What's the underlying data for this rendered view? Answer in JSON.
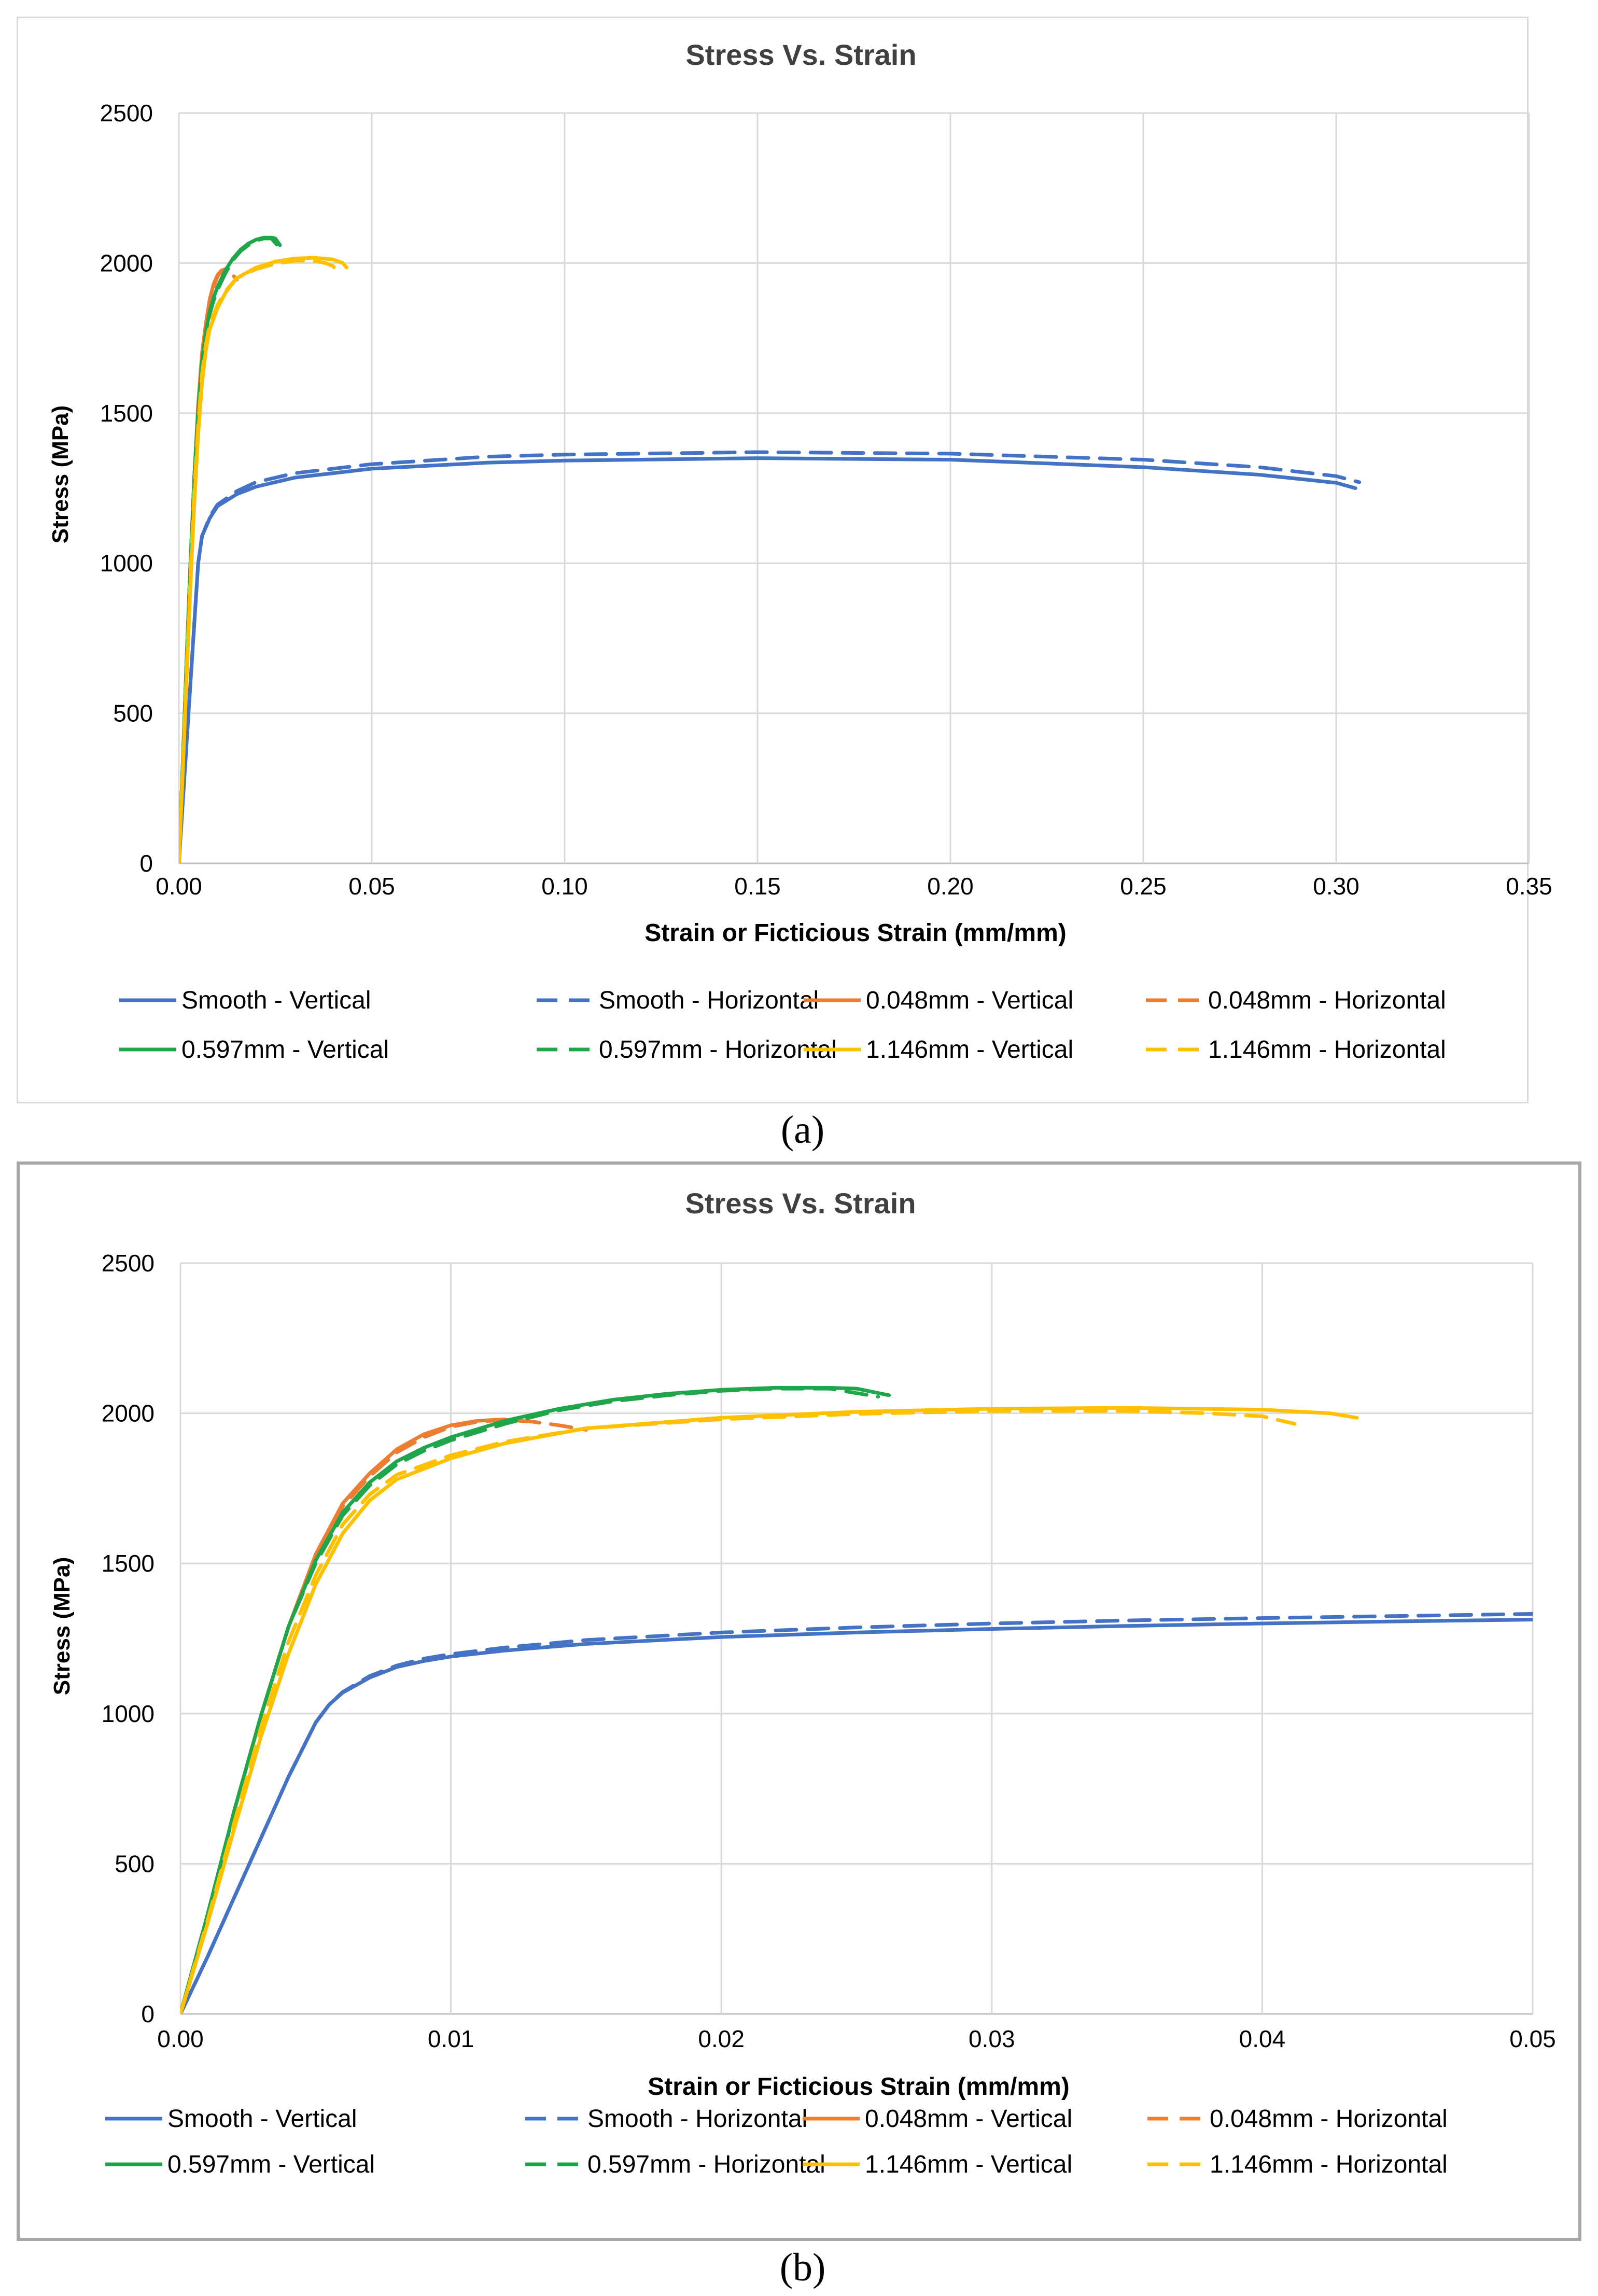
{
  "chart_data": [
    {
      "id": "a",
      "type": "line",
      "title": "Stress Vs. Strain",
      "xlabel": "Strain or Ficticious Strain (mm/mm)",
      "ylabel": "Stress (MPa)",
      "xlim": [
        0,
        0.35
      ],
      "ylim": [
        0,
        2500
      ],
      "xticks": [
        0,
        0.05,
        0.1,
        0.15,
        0.2,
        0.25,
        0.3,
        0.35
      ],
      "xtick_labels": [
        "0.00",
        "0.05",
        "0.10",
        "0.15",
        "0.20",
        "0.25",
        "0.30",
        "0.35"
      ],
      "yticks": [
        0,
        500,
        1000,
        1500,
        2000,
        2500
      ],
      "ytick_labels": [
        "0",
        "500",
        "1000",
        "1500",
        "2000",
        "2500"
      ],
      "grid": "vertical and horizontal",
      "legend_position": "bottom",
      "caption": "(a)",
      "series": [
        {
          "name": "Smooth - Vertical",
          "color": "#4472c4",
          "dash": false,
          "x": [
            0,
            0.003,
            0.005,
            0.006,
            0.008,
            0.01,
            0.015,
            0.02,
            0.03,
            0.05,
            0.08,
            0.1,
            0.15,
            0.2,
            0.25,
            0.28,
            0.3,
            0.305
          ],
          "y": [
            0,
            600,
            1000,
            1090,
            1150,
            1190,
            1230,
            1255,
            1285,
            1315,
            1335,
            1342,
            1350,
            1345,
            1320,
            1295,
            1268,
            1250
          ]
        },
        {
          "name": "Smooth - Horizontal",
          "color": "#4472c4",
          "dash": true,
          "x": [
            0,
            0.003,
            0.005,
            0.006,
            0.008,
            0.01,
            0.015,
            0.02,
            0.03,
            0.05,
            0.08,
            0.1,
            0.15,
            0.2,
            0.25,
            0.28,
            0.3,
            0.306
          ],
          "y": [
            0,
            600,
            1000,
            1090,
            1155,
            1195,
            1240,
            1270,
            1300,
            1330,
            1355,
            1362,
            1370,
            1365,
            1345,
            1320,
            1290,
            1270
          ]
        },
        {
          "name": "0.048mm - Vertical",
          "color": "#ed7d31",
          "dash": false,
          "x": [
            0,
            0.001,
            0.002,
            0.003,
            0.004,
            0.005,
            0.006,
            0.007,
            0.008,
            0.009,
            0.01,
            0.011,
            0.012
          ],
          "y": [
            0,
            330,
            680,
            1000,
            1290,
            1530,
            1700,
            1800,
            1880,
            1930,
            1960,
            1975,
            1980
          ]
        },
        {
          "name": "0.048mm - Horizontal",
          "color": "#ed7d31",
          "dash": true,
          "x": [
            0,
            0.001,
            0.002,
            0.003,
            0.004,
            0.005,
            0.006,
            0.007,
            0.008,
            0.009,
            0.01,
            0.011,
            0.012,
            0.013,
            0.014,
            0.015
          ],
          "y": [
            0,
            330,
            680,
            1000,
            1290,
            1520,
            1690,
            1790,
            1870,
            1920,
            1955,
            1972,
            1978,
            1972,
            1960,
            1945
          ]
        },
        {
          "name": "0.597mm - Vertical",
          "color": "#1fa64a",
          "dash": false,
          "x": [
            0,
            0.001,
            0.002,
            0.003,
            0.004,
            0.005,
            0.006,
            0.007,
            0.008,
            0.009,
            0.01,
            0.012,
            0.014,
            0.016,
            0.018,
            0.02,
            0.022,
            0.024,
            0.025,
            0.0262
          ],
          "y": [
            0,
            330,
            680,
            1000,
            1290,
            1510,
            1670,
            1770,
            1840,
            1885,
            1920,
            1975,
            2015,
            2045,
            2065,
            2078,
            2085,
            2085,
            2082,
            2060
          ]
        },
        {
          "name": "0.597mm - Horizontal",
          "color": "#1fa64a",
          "dash": true,
          "x": [
            0,
            0.001,
            0.002,
            0.003,
            0.004,
            0.005,
            0.006,
            0.007,
            0.008,
            0.009,
            0.01,
            0.012,
            0.014,
            0.016,
            0.018,
            0.02,
            0.022,
            0.024,
            0.0258
          ],
          "y": [
            0,
            330,
            680,
            1000,
            1290,
            1500,
            1660,
            1760,
            1830,
            1875,
            1910,
            1965,
            2010,
            2040,
            2060,
            2075,
            2082,
            2082,
            2055
          ]
        },
        {
          "name": "1.146mm - Vertical",
          "color": "#ffc000",
          "dash": false,
          "x": [
            0,
            0.001,
            0.002,
            0.003,
            0.004,
            0.005,
            0.006,
            0.007,
            0.008,
            0.01,
            0.012,
            0.015,
            0.02,
            0.025,
            0.03,
            0.035,
            0.04,
            0.0425,
            0.0435
          ],
          "y": [
            0,
            300,
            620,
            930,
            1200,
            1430,
            1600,
            1710,
            1780,
            1850,
            1900,
            1950,
            1985,
            2005,
            2015,
            2018,
            2012,
            2000,
            1985
          ]
        },
        {
          "name": "1.146mm - Horizontal",
          "color": "#ffc000",
          "dash": true,
          "x": [
            0,
            0.001,
            0.002,
            0.003,
            0.004,
            0.005,
            0.006,
            0.007,
            0.008,
            0.01,
            0.012,
            0.015,
            0.02,
            0.025,
            0.03,
            0.035,
            0.038,
            0.04,
            0.0412
          ],
          "y": [
            0,
            310,
            640,
            960,
            1240,
            1460,
            1630,
            1730,
            1795,
            1860,
            1905,
            1950,
            1980,
            1998,
            2008,
            2008,
            2000,
            1990,
            1965
          ]
        }
      ]
    },
    {
      "id": "b",
      "type": "line",
      "title": "Stress Vs. Strain",
      "xlabel": "Strain or Ficticious Strain (mm/mm)",
      "ylabel": "Stress (MPa)",
      "xlim": [
        0,
        0.05
      ],
      "ylim": [
        0,
        2500
      ],
      "xticks": [
        0,
        0.01,
        0.02,
        0.03,
        0.04,
        0.05
      ],
      "xtick_labels": [
        "0.00",
        "0.01",
        "0.02",
        "0.03",
        "0.04",
        "0.05"
      ],
      "yticks": [
        0,
        500,
        1000,
        1500,
        2000,
        2500
      ],
      "ytick_labels": [
        "0",
        "500",
        "1000",
        "1500",
        "2000",
        "2500"
      ],
      "grid": "vertical and horizontal",
      "legend_position": "bottom",
      "caption": "(b)",
      "series": [
        {
          "name": "Smooth - Vertical",
          "color": "#4472c4",
          "dash": false,
          "x": [
            0,
            0.001,
            0.002,
            0.003,
            0.004,
            0.005,
            0.0055,
            0.006,
            0.007,
            0.008,
            0.009,
            0.01,
            0.012,
            0.015,
            0.02,
            0.025,
            0.03,
            0.035,
            0.04,
            0.045,
            0.05
          ],
          "y": [
            0,
            190,
            390,
            590,
            790,
            970,
            1030,
            1070,
            1120,
            1155,
            1175,
            1190,
            1210,
            1232,
            1255,
            1270,
            1282,
            1292,
            1300,
            1307,
            1313
          ]
        },
        {
          "name": "Smooth - Horizontal",
          "color": "#4472c4",
          "dash": true,
          "x": [
            0,
            0.001,
            0.002,
            0.003,
            0.004,
            0.005,
            0.0055,
            0.006,
            0.007,
            0.008,
            0.009,
            0.01,
            0.012,
            0.015,
            0.02,
            0.025,
            0.03,
            0.035,
            0.04,
            0.045,
            0.05
          ],
          "y": [
            0,
            190,
            390,
            590,
            790,
            970,
            1030,
            1072,
            1125,
            1160,
            1183,
            1198,
            1220,
            1245,
            1270,
            1287,
            1300,
            1310,
            1318,
            1325,
            1332
          ]
        },
        {
          "name": "0.048mm - Vertical",
          "color": "#ed7d31",
          "dash": false,
          "x": [
            0,
            0.001,
            0.002,
            0.003,
            0.004,
            0.005,
            0.006,
            0.007,
            0.008,
            0.009,
            0.01,
            0.011,
            0.012
          ],
          "y": [
            0,
            330,
            680,
            1000,
            1290,
            1530,
            1700,
            1800,
            1880,
            1930,
            1960,
            1975,
            1980
          ]
        },
        {
          "name": "0.048mm - Horizontal",
          "color": "#ed7d31",
          "dash": true,
          "x": [
            0,
            0.001,
            0.002,
            0.003,
            0.004,
            0.005,
            0.006,
            0.007,
            0.008,
            0.009,
            0.01,
            0.011,
            0.012,
            0.013,
            0.014,
            0.015
          ],
          "y": [
            0,
            330,
            680,
            1000,
            1290,
            1520,
            1690,
            1790,
            1870,
            1920,
            1955,
            1972,
            1978,
            1972,
            1960,
            1945
          ]
        },
        {
          "name": "0.597mm - Vertical",
          "color": "#1fa64a",
          "dash": false,
          "x": [
            0,
            0.001,
            0.002,
            0.003,
            0.004,
            0.005,
            0.006,
            0.007,
            0.008,
            0.009,
            0.01,
            0.012,
            0.014,
            0.016,
            0.018,
            0.02,
            0.022,
            0.024,
            0.025,
            0.0262
          ],
          "y": [
            0,
            330,
            680,
            1000,
            1290,
            1510,
            1670,
            1770,
            1840,
            1885,
            1920,
            1975,
            2015,
            2045,
            2065,
            2078,
            2085,
            2085,
            2082,
            2060
          ]
        },
        {
          "name": "0.597mm - Horizontal",
          "color": "#1fa64a",
          "dash": true,
          "x": [
            0,
            0.001,
            0.002,
            0.003,
            0.004,
            0.005,
            0.006,
            0.007,
            0.008,
            0.009,
            0.01,
            0.012,
            0.014,
            0.016,
            0.018,
            0.02,
            0.022,
            0.024,
            0.0258
          ],
          "y": [
            0,
            330,
            680,
            1000,
            1290,
            1500,
            1660,
            1760,
            1830,
            1875,
            1910,
            1965,
            2010,
            2040,
            2060,
            2075,
            2082,
            2082,
            2055
          ]
        },
        {
          "name": "1.146mm - Vertical",
          "color": "#ffc000",
          "dash": false,
          "x": [
            0,
            0.001,
            0.002,
            0.003,
            0.004,
            0.005,
            0.006,
            0.007,
            0.008,
            0.01,
            0.012,
            0.015,
            0.02,
            0.025,
            0.03,
            0.035,
            0.04,
            0.0425,
            0.0435
          ],
          "y": [
            0,
            300,
            620,
            930,
            1200,
            1430,
            1600,
            1710,
            1780,
            1850,
            1900,
            1950,
            1985,
            2005,
            2015,
            2018,
            2012,
            2000,
            1985
          ]
        },
        {
          "name": "1.146mm - Horizontal",
          "color": "#ffc000",
          "dash": true,
          "x": [
            0,
            0.001,
            0.002,
            0.003,
            0.004,
            0.005,
            0.006,
            0.007,
            0.008,
            0.01,
            0.012,
            0.015,
            0.02,
            0.025,
            0.03,
            0.035,
            0.038,
            0.04,
            0.0412
          ],
          "y": [
            0,
            310,
            640,
            960,
            1240,
            1460,
            1630,
            1730,
            1795,
            1860,
            1905,
            1950,
            1980,
            1998,
            2008,
            2008,
            2000,
            1990,
            1965
          ]
        }
      ]
    }
  ]
}
